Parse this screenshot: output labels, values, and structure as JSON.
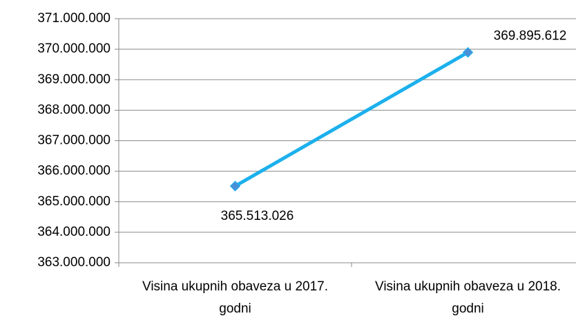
{
  "chart_data": {
    "type": "line",
    "categories": [
      "Visina ukupnih obaveza u 2017. godni",
      "Visina ukupnih obaveza u 2018. godni"
    ],
    "series": [
      {
        "color": "#1cb0ec",
        "marker_color": "#4a90d9",
        "values": [
          365513026,
          369895612
        ],
        "value_labels": [
          "365.513.026",
          "369.895.612"
        ]
      }
    ],
    "ylim": [
      363000000,
      371000000
    ],
    "yticks": [
      {
        "value": 363000000,
        "label": "363.000.000"
      },
      {
        "value": 364000000,
        "label": "364.000.000"
      },
      {
        "value": 365000000,
        "label": "365.000.000"
      },
      {
        "value": 366000000,
        "label": "366.000.000"
      },
      {
        "value": 367000000,
        "label": "367.000.000"
      },
      {
        "value": 368000000,
        "label": "368.000.000"
      },
      {
        "value": 369000000,
        "label": "369.000.000"
      },
      {
        "value": 370000000,
        "label": "370.000.000"
      },
      {
        "value": 371000000,
        "label": "371.000.000"
      }
    ],
    "grid": true
  }
}
